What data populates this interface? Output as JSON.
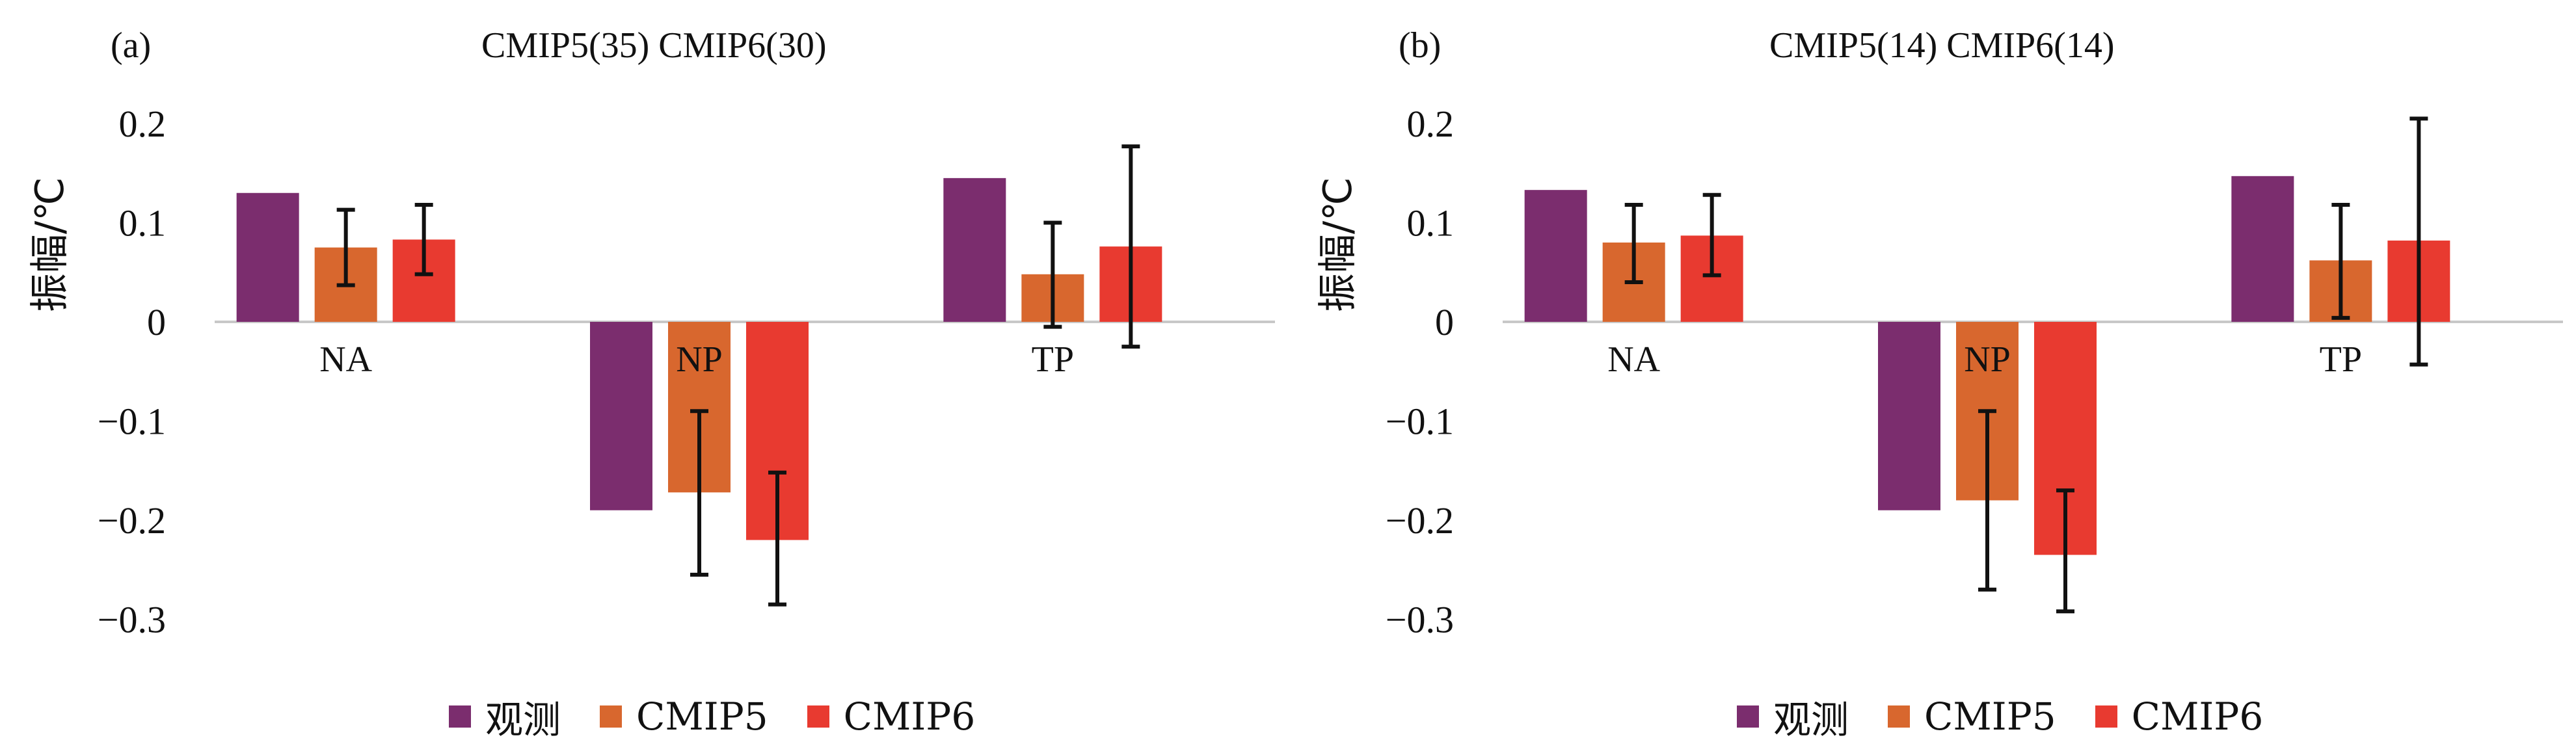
{
  "chart_data": [
    {
      "type": "bar",
      "panel_label": "(a)",
      "title": "CMIP5(35)   CMIP6(30)",
      "ylabel": "振幅/℃",
      "xlabel": "",
      "ylim": [
        -0.3,
        0.2
      ],
      "yticks": [
        "0.2",
        "0.1",
        "0",
        "−0.1",
        "−0.2",
        "−0.3"
      ],
      "categories": [
        "NA",
        "NP",
        "TP"
      ],
      "series": [
        {
          "name": "观测",
          "color": "#7b2d6e",
          "values": [
            0.13,
            -0.19,
            0.145
          ]
        },
        {
          "name": "CMIP5",
          "color": "#d8672e",
          "values": [
            0.075,
            -0.172,
            0.048
          ],
          "error_low": [
            0.037,
            -0.255,
            -0.005
          ],
          "error_high": [
            0.113,
            -0.09,
            0.1
          ]
        },
        {
          "name": "CMIP6",
          "color": "#e83a30",
          "values": [
            0.083,
            -0.22,
            0.076
          ],
          "error_low": [
            0.048,
            -0.285,
            -0.025
          ],
          "error_high": [
            0.118,
            -0.152,
            0.177
          ]
        }
      ],
      "legend": "bottom-center",
      "grid": false
    },
    {
      "type": "bar",
      "panel_label": "(b)",
      "title": "CMIP5(14)   CMIP6(14)",
      "ylabel": "振幅/℃",
      "xlabel": "",
      "ylim": [
        -0.3,
        0.2
      ],
      "yticks": [
        "0.2",
        "0.1",
        "0",
        "−0.1",
        "−0.2",
        "−0.3"
      ],
      "categories": [
        "NA",
        "NP",
        "TP"
      ],
      "series": [
        {
          "name": "观测",
          "color": "#7b2d6e",
          "values": [
            0.133,
            -0.19,
            0.147
          ]
        },
        {
          "name": "CMIP5",
          "color": "#d8672e",
          "values": [
            0.08,
            -0.18,
            0.062
          ],
          "error_low": [
            0.04,
            -0.27,
            0.004
          ],
          "error_high": [
            0.118,
            -0.09,
            0.118
          ]
        },
        {
          "name": "CMIP6",
          "color": "#e83a30",
          "values": [
            0.087,
            -0.235,
            0.082
          ],
          "error_low": [
            0.047,
            -0.292,
            -0.043
          ],
          "error_high": [
            0.128,
            -0.17,
            0.205
          ]
        }
      ],
      "legend": "bottom-center",
      "grid": false
    }
  ]
}
